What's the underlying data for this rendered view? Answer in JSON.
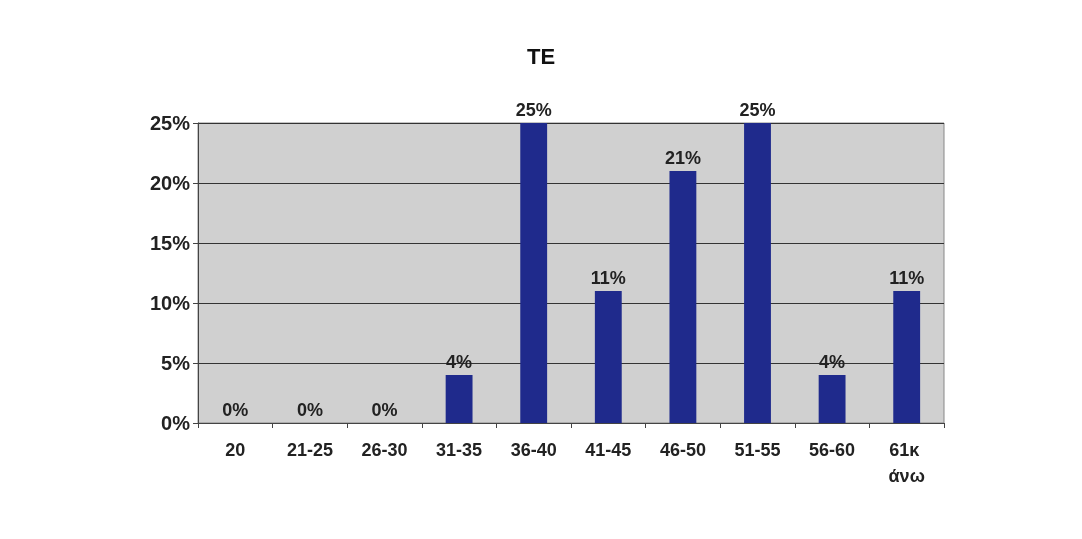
{
  "chart_data": {
    "type": "bar",
    "title": "TE",
    "categories": [
      "20",
      "21-25",
      "26-30",
      "31-35",
      "36-40",
      "41-45",
      "46-50",
      "51-55",
      "56-60",
      "61κ άνω"
    ],
    "values": [
      0,
      0,
      0,
      4,
      25,
      11,
      21,
      25,
      4,
      11
    ],
    "value_labels": [
      "0%",
      "0%",
      "0%",
      "4%",
      "25%",
      "11%",
      "21%",
      "25%",
      "4%",
      "11%"
    ],
    "color": "#1f2a8c",
    "ylim": [
      0,
      25
    ],
    "yticks": [
      {
        "value": 0,
        "label": "0%"
      },
      {
        "value": 5,
        "label": "5%"
      },
      {
        "value": 10,
        "label": "10%"
      },
      {
        "value": 15,
        "label": "15%"
      },
      {
        "value": 20,
        "label": "20%"
      },
      {
        "value": 25,
        "label": "25%"
      }
    ],
    "grid": "y"
  }
}
